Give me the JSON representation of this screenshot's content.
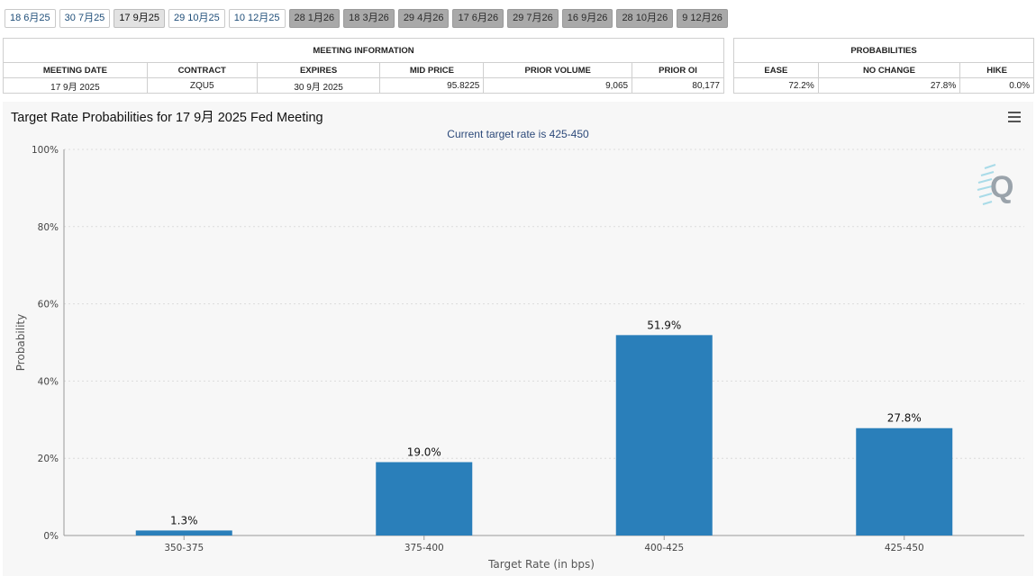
{
  "tabs": [
    {
      "label": "18 6月25",
      "state": "past"
    },
    {
      "label": "30 7月25",
      "state": "past"
    },
    {
      "label": "17 9月25",
      "state": "active"
    },
    {
      "label": "29 10月25",
      "state": "past"
    },
    {
      "label": "10 12月25",
      "state": "past"
    },
    {
      "label": "28 1月26",
      "state": "future"
    },
    {
      "label": "18 3月26",
      "state": "future"
    },
    {
      "label": "29 4月26",
      "state": "future"
    },
    {
      "label": "17 6月26",
      "state": "future"
    },
    {
      "label": "29 7月26",
      "state": "future"
    },
    {
      "label": "16 9月26",
      "state": "future"
    },
    {
      "label": "28 10月26",
      "state": "future"
    },
    {
      "label": "9 12月26",
      "state": "future"
    }
  ],
  "meeting_info": {
    "title": "MEETING INFORMATION",
    "headers": [
      "MEETING DATE",
      "CONTRACT",
      "EXPIRES",
      "MID PRICE",
      "PRIOR VOLUME",
      "PRIOR OI"
    ],
    "row": [
      "17 9月 2025",
      "ZQU5",
      "30 9月 2025",
      "95.8225",
      "9,065",
      "80,177"
    ]
  },
  "probabilities": {
    "title": "PROBABILITIES",
    "headers": [
      "EASE",
      "NO CHANGE",
      "HIKE"
    ],
    "row": [
      "72.2%",
      "27.8%",
      "0.0%"
    ]
  },
  "chart_data": {
    "type": "bar",
    "title": "Target Rate Probabilities for 17 9月 2025 Fed Meeting",
    "subtitle": "Current target rate is 425-450",
    "xlabel": "Target Rate (in bps)",
    "ylabel": "Probability",
    "categories": [
      "350-375",
      "375-400",
      "400-425",
      "425-450"
    ],
    "values": [
      1.3,
      19.0,
      51.9,
      27.8
    ],
    "data_labels": [
      "1.3%",
      "19.0%",
      "51.9%",
      "27.8%"
    ],
    "ylim": [
      0,
      100
    ],
    "yticks": [
      0,
      20,
      40,
      60,
      80,
      100
    ],
    "ytick_labels": [
      "0%",
      "20%",
      "40%",
      "60%",
      "80%",
      "100%"
    ],
    "grid": true,
    "bar_color": "#2a7fba"
  }
}
